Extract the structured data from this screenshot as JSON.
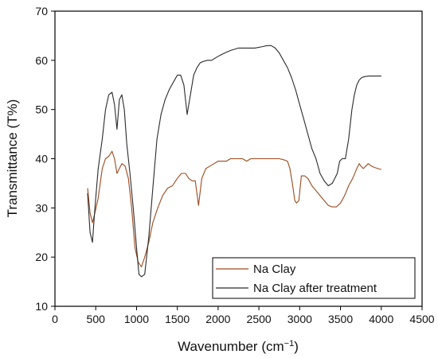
{
  "chart_data": {
    "type": "line",
    "xlabel": "Wavenumber (cm",
    "xlabel_sup": "−1",
    "xlabel_close": ")",
    "ylabel": "Transmittance (T%)",
    "xlim": [
      0,
      4500
    ],
    "ylim": [
      10,
      70
    ],
    "xticks": [
      0,
      500,
      1000,
      1500,
      2000,
      2500,
      3000,
      3500,
      4000,
      4500
    ],
    "yticks": [
      10,
      20,
      30,
      40,
      50,
      60,
      70
    ],
    "grid": false,
    "legend_position": "bottom-right",
    "series": [
      {
        "name": "Na Clay",
        "color": "#9c4a1e",
        "x": [
          400,
          430,
          460,
          490,
          530,
          580,
          620,
          660,
          700,
          730,
          760,
          790,
          820,
          860,
          900,
          940,
          980,
          1020,
          1060,
          1100,
          1150,
          1200,
          1260,
          1320,
          1380,
          1440,
          1500,
          1550,
          1600,
          1640,
          1680,
          1720,
          1760,
          1800,
          1850,
          1900,
          1950,
          2000,
          2050,
          2100,
          2150,
          2200,
          2250,
          2300,
          2350,
          2400,
          2450,
          2500,
          2550,
          2600,
          2650,
          2700,
          2750,
          2800,
          2850,
          2880,
          2910,
          2940,
          2960,
          2990,
          3020,
          3060,
          3100,
          3150,
          3200,
          3250,
          3300,
          3350,
          3400,
          3450,
          3500,
          3550,
          3600,
          3650,
          3700,
          3730,
          3750,
          3780,
          3810,
          3840,
          3880,
          3920,
          3960,
          4000
        ],
        "y": [
          34,
          29,
          27,
          29,
          32,
          38,
          40,
          40.5,
          41.5,
          40,
          37,
          38,
          39,
          38.5,
          36,
          30,
          22,
          19,
          18,
          20,
          23,
          27,
          30,
          32.5,
          34,
          34.5,
          36,
          37,
          37,
          36,
          35.5,
          35.5,
          30.5,
          36,
          38,
          38.5,
          39,
          39.5,
          39.5,
          39.5,
          40,
          40,
          40,
          40,
          39.5,
          40,
          40,
          40,
          40,
          40,
          40,
          40,
          40,
          39.8,
          39.5,
          38,
          35,
          31.5,
          31,
          31.5,
          36.5,
          36.5,
          36,
          34.5,
          33.5,
          32.5,
          31.5,
          30.5,
          30.2,
          30.2,
          31,
          32.5,
          34.5,
          36,
          38,
          39,
          38.5,
          38,
          38.5,
          39,
          38.5,
          38.2,
          38,
          37.8
        ]
      },
      {
        "name": "Na Clay after treatment",
        "color": "#2a2a2a",
        "x": [
          400,
          430,
          460,
          490,
          530,
          580,
          620,
          660,
          700,
          730,
          760,
          790,
          820,
          850,
          880,
          920,
          960,
          1000,
          1030,
          1060,
          1100,
          1150,
          1200,
          1250,
          1300,
          1350,
          1400,
          1450,
          1500,
          1540,
          1580,
          1620,
          1660,
          1700,
          1740,
          1780,
          1820,
          1870,
          1920,
          1970,
          2020,
          2080,
          2150,
          2250,
          2350,
          2450,
          2550,
          2600,
          2650,
          2700,
          2750,
          2800,
          2850,
          2900,
          2950,
          3000,
          3050,
          3100,
          3150,
          3200,
          3250,
          3300,
          3350,
          3400,
          3430,
          3460,
          3490,
          3520,
          3560,
          3600,
          3640,
          3670,
          3700,
          3730,
          3760,
          3800,
          3850,
          3900,
          3950,
          4000
        ],
        "y": [
          33,
          25,
          23,
          30,
          38,
          44,
          50,
          53,
          53.5,
          51,
          46,
          52,
          53,
          50,
          43,
          37,
          30,
          22,
          16.5,
          16,
          16.5,
          24,
          34,
          44,
          49,
          52,
          54,
          55.5,
          57,
          57,
          55,
          49,
          53,
          57,
          58.5,
          59.5,
          59.8,
          60,
          60,
          60.5,
          61,
          61.5,
          62,
          62.5,
          62.5,
          62.5,
          62.8,
          63,
          63,
          62.5,
          61.5,
          60,
          58.5,
          56.5,
          54,
          51,
          48,
          45,
          42,
          40,
          37,
          35.5,
          34.5,
          35,
          36,
          37,
          39.5,
          40,
          40,
          44,
          50,
          53,
          55,
          56,
          56.5,
          56.7,
          56.8,
          56.8,
          56.8,
          56.8
        ]
      }
    ]
  }
}
